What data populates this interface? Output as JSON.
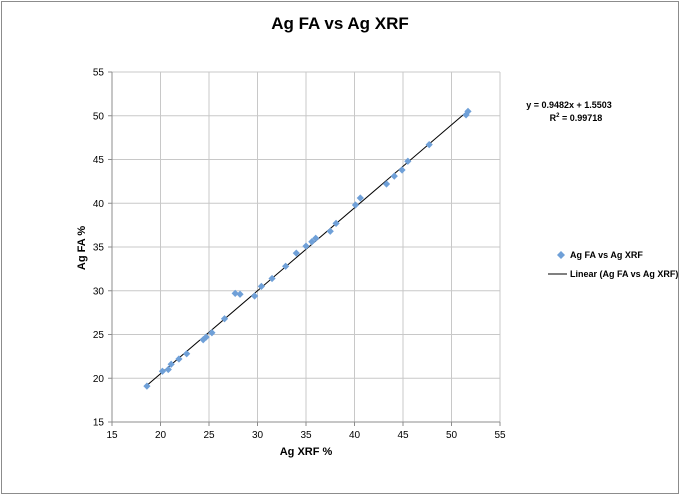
{
  "chart_data": {
    "type": "scatter",
    "title": "Ag FA vs Ag XRF",
    "xlabel": "Ag XRF %",
    "ylabel": "Ag FA %",
    "xlim": [
      15,
      55
    ],
    "ylim": [
      15,
      55
    ],
    "xticks": [
      15,
      20,
      25,
      30,
      35,
      40,
      45,
      50,
      55
    ],
    "yticks": [
      15,
      20,
      25,
      30,
      35,
      40,
      45,
      50,
      55
    ],
    "grid": true,
    "legend_position": "right",
    "series": [
      {
        "name": "Ag FA vs Ag XRF",
        "color": "#6fa0d8",
        "marker": "diamond",
        "points": [
          [
            18.6,
            19.1
          ],
          [
            20.2,
            20.8
          ],
          [
            20.8,
            21.0
          ],
          [
            21.1,
            21.6
          ],
          [
            21.9,
            22.2
          ],
          [
            22.7,
            22.8
          ],
          [
            24.4,
            24.4
          ],
          [
            24.7,
            24.7
          ],
          [
            25.3,
            25.2
          ],
          [
            26.6,
            26.8
          ],
          [
            27.7,
            29.7
          ],
          [
            28.2,
            29.6
          ],
          [
            29.7,
            29.4
          ],
          [
            30.4,
            30.5
          ],
          [
            31.5,
            31.4
          ],
          [
            32.9,
            32.8
          ],
          [
            34.0,
            34.3
          ],
          [
            35.0,
            35.1
          ],
          [
            35.6,
            35.6
          ],
          [
            36.0,
            36.0
          ],
          [
            37.5,
            36.8
          ],
          [
            38.1,
            37.7
          ],
          [
            40.1,
            39.8
          ],
          [
            40.6,
            40.6
          ],
          [
            43.3,
            42.2
          ],
          [
            44.1,
            43.1
          ],
          [
            44.9,
            43.8
          ],
          [
            45.5,
            44.8
          ],
          [
            47.7,
            46.7
          ],
          [
            51.5,
            50.1
          ],
          [
            51.7,
            50.5
          ]
        ]
      }
    ],
    "trendline": {
      "name": "Linear (Ag FA vs Ag XRF)",
      "color": "#000000",
      "slope": 0.9482,
      "intercept": 1.5503,
      "x_range": [
        18.6,
        51.7
      ],
      "equation": "y = 0.9482x + 1.5503",
      "r2_label": "R",
      "r2_sup": "2",
      "r2_value": " = 0.99718"
    }
  }
}
